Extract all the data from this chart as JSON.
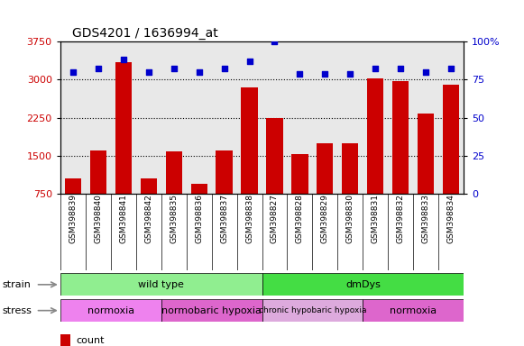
{
  "title": "GDS4201 / 1636994_at",
  "samples": [
    "GSM398839",
    "GSM398840",
    "GSM398841",
    "GSM398842",
    "GSM398835",
    "GSM398836",
    "GSM398837",
    "GSM398838",
    "GSM398827",
    "GSM398828",
    "GSM398829",
    "GSM398830",
    "GSM398831",
    "GSM398832",
    "GSM398833",
    "GSM398834"
  ],
  "counts": [
    1050,
    1600,
    3350,
    1050,
    1580,
    950,
    1600,
    2850,
    2250,
    1530,
    1750,
    1750,
    3020,
    2970,
    2330,
    2900
  ],
  "percentile_ranks": [
    80,
    82,
    88,
    80,
    82,
    80,
    82,
    87,
    100,
    79,
    79,
    79,
    82,
    82,
    80,
    82
  ],
  "ylim_left": [
    750,
    3750
  ],
  "ylim_right": [
    0,
    100
  ],
  "yticks_left": [
    750,
    1500,
    2250,
    3000,
    3750
  ],
  "yticks_right": [
    0,
    25,
    50,
    75,
    100
  ],
  "strain_groups": [
    {
      "label": "wild type",
      "start": 0,
      "end": 8,
      "color": "#90EE90"
    },
    {
      "label": "dmDys",
      "start": 8,
      "end": 16,
      "color": "#44DD44"
    }
  ],
  "stress_groups": [
    {
      "label": "normoxia",
      "start": 0,
      "end": 4,
      "color": "#EE82EE"
    },
    {
      "label": "normobaric hypoxia",
      "start": 4,
      "end": 8,
      "color": "#DD66CC"
    },
    {
      "label": "chronic hypobaric hypoxia",
      "start": 8,
      "end": 12,
      "color": "#DDAADD"
    },
    {
      "label": "normoxia",
      "start": 12,
      "end": 16,
      "color": "#DD66CC"
    }
  ],
  "bar_color": "#CC0000",
  "dot_color": "#0000CC",
  "bg_color": "#E8E8E8",
  "left_axis_color": "#CC0000",
  "right_axis_color": "#0000CC",
  "hgrid_vals": [
    1500,
    2250,
    3000
  ],
  "fig_width": 5.81,
  "fig_height": 3.84
}
